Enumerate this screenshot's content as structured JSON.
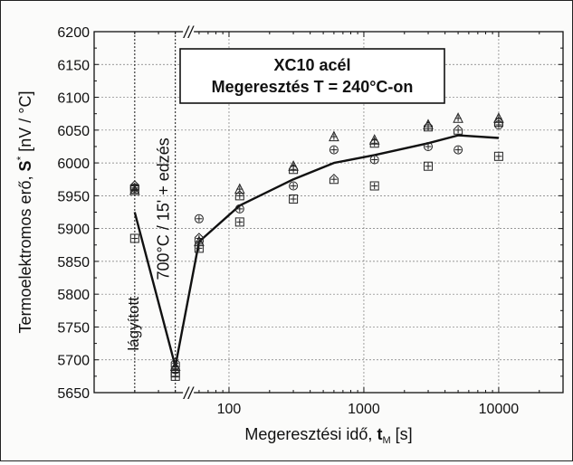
{
  "chart_data": {
    "type": "scatter",
    "title": [
      "XC10 acél",
      "Megeresztés T = 240°C-on"
    ],
    "xlabel": {
      "main": "Megeresztési idő, ",
      "symbol": "t",
      "subscript": "M",
      "unit": " [s]"
    },
    "ylabel": {
      "main": "Termoelektromos erő, ",
      "symbol": "S",
      "superscript": "*",
      "unit": " [nV / °C]"
    },
    "x_scale": "log",
    "xlim": [
      10,
      30000
    ],
    "ylim": [
      5650,
      6200
    ],
    "x_tick_labels": [
      "100",
      "1000",
      "10000"
    ],
    "x_tick_values": [
      100,
      1000,
      10000
    ],
    "y_ticks": [
      5650,
      5700,
      5750,
      5800,
      5850,
      5900,
      5950,
      6000,
      6050,
      6100,
      6150,
      6200
    ],
    "grid": true,
    "axis_break_marks": "//",
    "stage_x": [
      20,
      40
    ],
    "stage_labels": [
      "lágyított",
      "700°C / 15' + edzés"
    ],
    "series": [
      {
        "marker": "square-plus",
        "points": [
          [
            20,
            5960
          ],
          [
            20,
            5885
          ],
          [
            40,
            5675
          ],
          [
            40,
            5680
          ],
          [
            60,
            5870
          ],
          [
            120,
            5910
          ],
          [
            300,
            5945
          ],
          [
            1200,
            5965
          ],
          [
            3000,
            5995
          ],
          [
            10000,
            6010
          ]
        ]
      },
      {
        "marker": "circle-plus",
        "points": [
          [
            20,
            5962
          ],
          [
            40,
            5685
          ],
          [
            60,
            5915
          ],
          [
            120,
            5930
          ],
          [
            300,
            5965
          ],
          [
            600,
            6020
          ],
          [
            1200,
            6005
          ],
          [
            3000,
            6025
          ],
          [
            5000,
            6020
          ],
          [
            10000,
            6058
          ]
        ]
      },
      {
        "marker": "triangle-plus",
        "points": [
          [
            20,
            5958
          ],
          [
            40,
            5690
          ],
          [
            60,
            5880
          ],
          [
            120,
            5960
          ],
          [
            300,
            5995
          ],
          [
            600,
            6040
          ],
          [
            1200,
            6035
          ],
          [
            3000,
            6058
          ],
          [
            5000,
            6068
          ],
          [
            10000,
            6068
          ]
        ]
      },
      {
        "marker": "house-plus",
        "points": [
          [
            20,
            5965
          ],
          [
            40,
            5695
          ],
          [
            60,
            5885
          ],
          [
            120,
            5950
          ],
          [
            300,
            5990
          ],
          [
            600,
            5975
          ],
          [
            1200,
            6030
          ],
          [
            3000,
            6055
          ],
          [
            5000,
            6050
          ],
          [
            10000,
            6062
          ]
        ]
      }
    ],
    "trend_line": [
      [
        20,
        5925
      ],
      [
        40,
        5690
      ],
      [
        60,
        5880
      ],
      [
        120,
        5935
      ],
      [
        300,
        5975
      ],
      [
        600,
        6000
      ],
      [
        1200,
        6012
      ],
      [
        3000,
        6030
      ],
      [
        5000,
        6042
      ],
      [
        10000,
        6038
      ]
    ]
  }
}
